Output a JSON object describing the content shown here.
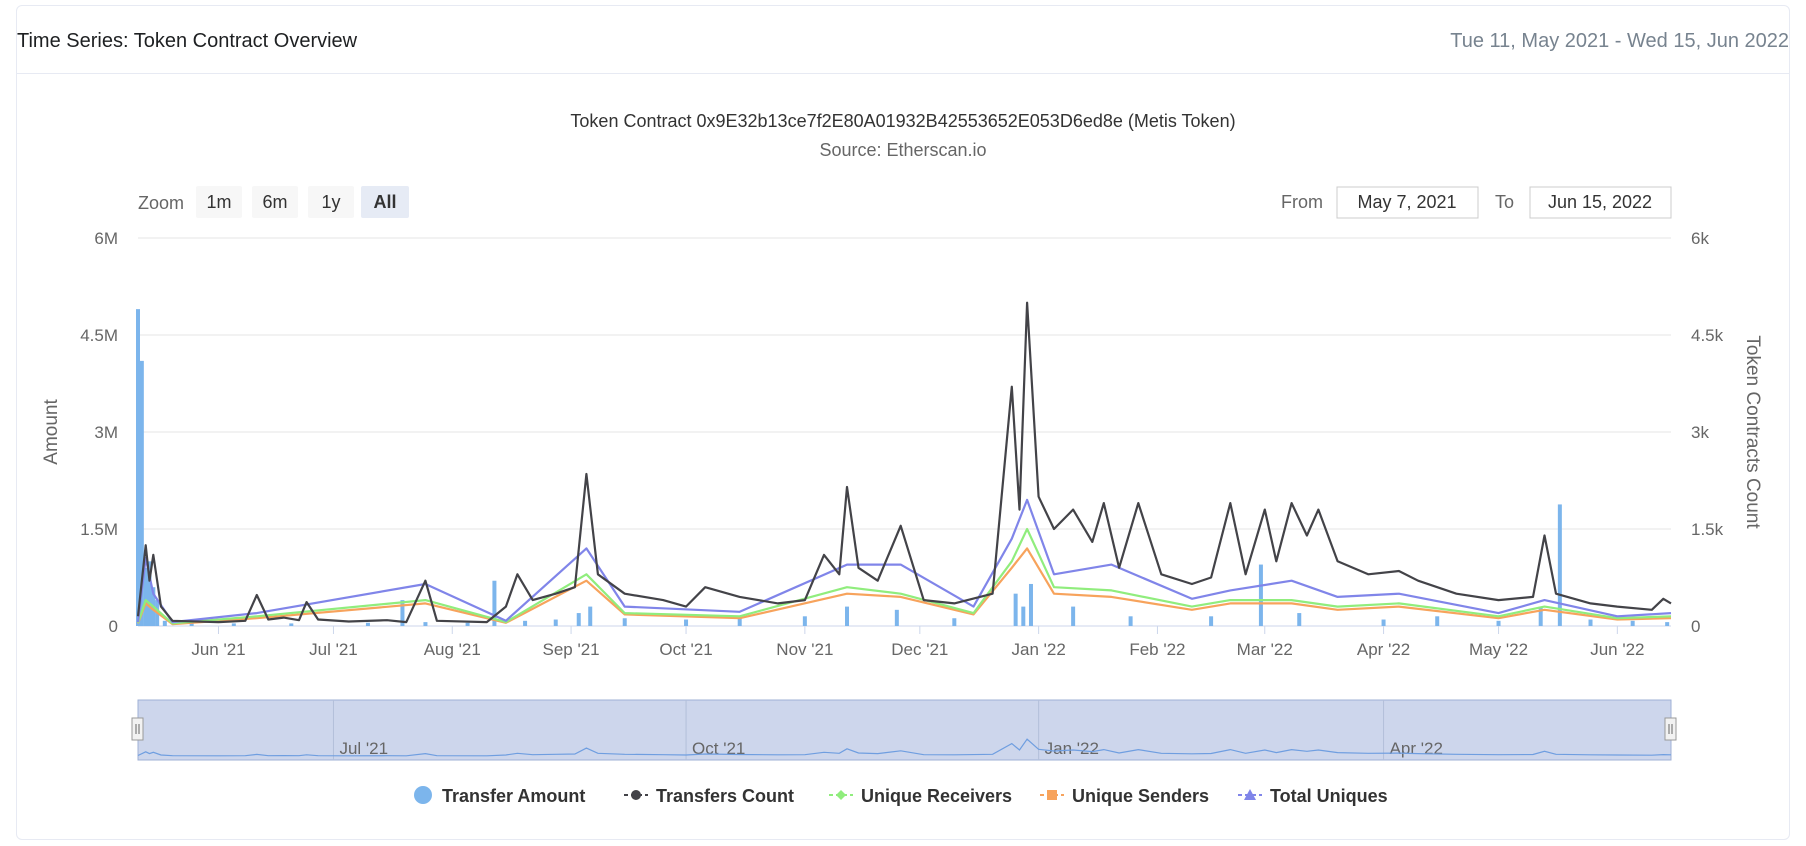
{
  "header": {
    "title": "Time Series: Token Contract Overview",
    "date_range": "Tue 11, May 2021 - Wed 15, Jun 2022"
  },
  "range_selector": {
    "zoom_label": "Zoom",
    "buttons": [
      "1m",
      "6m",
      "1y",
      "All"
    ],
    "active": "All",
    "from_label": "From",
    "from_value": "May 7, 2021",
    "to_label": "To",
    "to_value": "Jun 15, 2022"
  },
  "colors": {
    "transfer_amount": "#7cb5ec",
    "transfers_count": "#434348",
    "unique_receivers": "#90ed7d",
    "unique_senders": "#f7a35c",
    "total_uniques": "#8085e9",
    "grid": "#e6e6e6",
    "navigator_fill": "#cdd6ec"
  },
  "chart_data": {
    "type": "line",
    "title": "Token Contract 0x9E32b13ce7f2E80A01932B42553652E053D6ed8e (Metis Token)",
    "subtitle": "Source: Etherscan.io",
    "y_left": {
      "label": "Amount",
      "ticks": [
        "0",
        "1.5M",
        "3M",
        "4.5M",
        "6M"
      ],
      "tick_values": [
        0,
        1500000,
        3000000,
        4500000,
        6000000
      ],
      "lim": [
        0,
        6000000
      ]
    },
    "y_right": {
      "label": "Token Contracts Count",
      "ticks": [
        "0",
        "1.5k",
        "3k",
        "4.5k",
        "6k"
      ],
      "tick_values": [
        0,
        1500,
        3000,
        4500,
        6000
      ],
      "lim": [
        0,
        6000
      ]
    },
    "x_range": [
      "2021-05-11",
      "2022-06-15"
    ],
    "x_ticks": [
      {
        "label": "Jun '21",
        "date": "2021-06-01"
      },
      {
        "label": "Jul '21",
        "date": "2021-07-01"
      },
      {
        "label": "Aug '21",
        "date": "2021-08-01"
      },
      {
        "label": "Sep '21",
        "date": "2021-09-01"
      },
      {
        "label": "Oct '21",
        "date": "2021-10-01"
      },
      {
        "label": "Nov '21",
        "date": "2021-11-01"
      },
      {
        "label": "Dec '21",
        "date": "2021-12-01"
      },
      {
        "label": "Jan '22",
        "date": "2022-01-01"
      },
      {
        "label": "Feb '22",
        "date": "2022-02-01"
      },
      {
        "label": "Mar '22",
        "date": "2022-03-01"
      },
      {
        "label": "Apr '22",
        "date": "2022-04-01"
      },
      {
        "label": "May '22",
        "date": "2022-05-01"
      },
      {
        "label": "Jun '22",
        "date": "2022-06-01"
      }
    ],
    "navigator_ticks": [
      {
        "label": "Jul '21",
        "date": "2021-07-01"
      },
      {
        "label": "Oct '21",
        "date": "2021-10-01"
      },
      {
        "label": "Jan '22",
        "date": "2022-01-01"
      },
      {
        "label": "Apr '22",
        "date": "2022-04-01"
      }
    ],
    "series": [
      {
        "name": "Transfer Amount",
        "type": "column",
        "axis": "left",
        "points": [
          [
            "2021-05-11",
            4900000
          ],
          [
            "2021-05-12",
            4100000
          ],
          [
            "2021-05-13",
            900000
          ],
          [
            "2021-05-14",
            1000000
          ],
          [
            "2021-05-15",
            600000
          ],
          [
            "2021-05-16",
            400000
          ],
          [
            "2021-05-18",
            80000
          ],
          [
            "2021-05-25",
            50000
          ],
          [
            "2021-06-05",
            40000
          ],
          [
            "2021-06-20",
            40000
          ],
          [
            "2021-07-10",
            50000
          ],
          [
            "2021-07-19",
            400000
          ],
          [
            "2021-07-25",
            60000
          ],
          [
            "2021-08-05",
            50000
          ],
          [
            "2021-08-12",
            700000
          ],
          [
            "2021-08-20",
            80000
          ],
          [
            "2021-08-28",
            100000
          ],
          [
            "2021-09-03",
            200000
          ],
          [
            "2021-09-06",
            300000
          ],
          [
            "2021-09-15",
            120000
          ],
          [
            "2021-10-01",
            100000
          ],
          [
            "2021-10-15",
            120000
          ],
          [
            "2021-11-01",
            150000
          ],
          [
            "2021-11-12",
            300000
          ],
          [
            "2021-11-25",
            250000
          ],
          [
            "2021-12-10",
            120000
          ],
          [
            "2021-12-26",
            500000
          ],
          [
            "2021-12-28",
            300000
          ],
          [
            "2021-12-30",
            650000
          ],
          [
            "2022-01-10",
            300000
          ],
          [
            "2022-01-25",
            150000
          ],
          [
            "2022-02-15",
            150000
          ],
          [
            "2022-02-28",
            950000
          ],
          [
            "2022-03-10",
            200000
          ],
          [
            "2022-04-01",
            100000
          ],
          [
            "2022-04-15",
            150000
          ],
          [
            "2022-05-01",
            80000
          ],
          [
            "2022-05-12",
            300000
          ],
          [
            "2022-05-17",
            1880000
          ],
          [
            "2022-05-25",
            100000
          ],
          [
            "2022-06-05",
            80000
          ],
          [
            "2022-06-14",
            60000
          ]
        ]
      },
      {
        "name": "Transfers Count",
        "type": "line",
        "axis": "right",
        "points": [
          [
            "2021-05-11",
            150
          ],
          [
            "2021-05-13",
            1250
          ],
          [
            "2021-05-14",
            700
          ],
          [
            "2021-05-15",
            1100
          ],
          [
            "2021-05-17",
            300
          ],
          [
            "2021-05-20",
            80
          ],
          [
            "2021-06-01",
            60
          ],
          [
            "2021-06-08",
            80
          ],
          [
            "2021-06-11",
            480
          ],
          [
            "2021-06-14",
            100
          ],
          [
            "2021-06-18",
            130
          ],
          [
            "2021-06-22",
            90
          ],
          [
            "2021-06-24",
            370
          ],
          [
            "2021-06-27",
            100
          ],
          [
            "2021-07-05",
            70
          ],
          [
            "2021-07-15",
            90
          ],
          [
            "2021-07-20",
            60
          ],
          [
            "2021-07-25",
            700
          ],
          [
            "2021-07-28",
            80
          ],
          [
            "2021-08-10",
            60
          ],
          [
            "2021-08-15",
            300
          ],
          [
            "2021-08-18",
            800
          ],
          [
            "2021-08-22",
            400
          ],
          [
            "2021-08-28",
            500
          ],
          [
            "2021-09-02",
            600
          ],
          [
            "2021-09-05",
            2350
          ],
          [
            "2021-09-08",
            800
          ],
          [
            "2021-09-15",
            500
          ],
          [
            "2021-09-25",
            400
          ],
          [
            "2021-10-01",
            300
          ],
          [
            "2021-10-06",
            600
          ],
          [
            "2021-10-15",
            450
          ],
          [
            "2021-10-25",
            350
          ],
          [
            "2021-11-01",
            400
          ],
          [
            "2021-11-06",
            1100
          ],
          [
            "2021-11-10",
            800
          ],
          [
            "2021-11-12",
            2150
          ],
          [
            "2021-11-15",
            900
          ],
          [
            "2021-11-20",
            700
          ],
          [
            "2021-11-26",
            1550
          ],
          [
            "2021-12-02",
            400
          ],
          [
            "2021-12-10",
            350
          ],
          [
            "2021-12-20",
            500
          ],
          [
            "2021-12-25",
            3700
          ],
          [
            "2021-12-27",
            1800
          ],
          [
            "2021-12-29",
            5000
          ],
          [
            "2022-01-01",
            2000
          ],
          [
            "2022-01-05",
            1500
          ],
          [
            "2022-01-10",
            1800
          ],
          [
            "2022-01-15",
            1300
          ],
          [
            "2022-01-18",
            1900
          ],
          [
            "2022-01-22",
            900
          ],
          [
            "2022-01-27",
            1900
          ],
          [
            "2022-02-02",
            800
          ],
          [
            "2022-02-10",
            650
          ],
          [
            "2022-02-15",
            750
          ],
          [
            "2022-02-20",
            1900
          ],
          [
            "2022-02-24",
            800
          ],
          [
            "2022-03-01",
            1800
          ],
          [
            "2022-03-04",
            1000
          ],
          [
            "2022-03-08",
            1900
          ],
          [
            "2022-03-12",
            1400
          ],
          [
            "2022-03-15",
            1800
          ],
          [
            "2022-03-20",
            1000
          ],
          [
            "2022-03-28",
            800
          ],
          [
            "2022-04-05",
            850
          ],
          [
            "2022-04-10",
            700
          ],
          [
            "2022-04-20",
            500
          ],
          [
            "2022-05-01",
            400
          ],
          [
            "2022-05-10",
            450
          ],
          [
            "2022-05-13",
            1400
          ],
          [
            "2022-05-16",
            500
          ],
          [
            "2022-05-25",
            350
          ],
          [
            "2022-06-01",
            300
          ],
          [
            "2022-06-10",
            250
          ],
          [
            "2022-06-13",
            420
          ],
          [
            "2022-06-15",
            350
          ]
        ]
      },
      {
        "name": "Unique Receivers",
        "type": "line",
        "axis": "right",
        "points": [
          [
            "2021-05-11",
            50
          ],
          [
            "2021-05-13",
            400
          ],
          [
            "2021-05-15",
            300
          ],
          [
            "2021-05-20",
            40
          ],
          [
            "2021-06-11",
            150
          ],
          [
            "2021-07-25",
            400
          ],
          [
            "2021-08-15",
            60
          ],
          [
            "2021-09-05",
            800
          ],
          [
            "2021-09-15",
            200
          ],
          [
            "2021-10-15",
            150
          ],
          [
            "2021-11-12",
            600
          ],
          [
            "2021-11-26",
            500
          ],
          [
            "2021-12-15",
            200
          ],
          [
            "2021-12-25",
            1000
          ],
          [
            "2021-12-29",
            1500
          ],
          [
            "2022-01-05",
            600
          ],
          [
            "2022-01-20",
            550
          ],
          [
            "2022-02-10",
            300
          ],
          [
            "2022-02-20",
            400
          ],
          [
            "2022-03-08",
            400
          ],
          [
            "2022-03-20",
            300
          ],
          [
            "2022-04-05",
            350
          ],
          [
            "2022-05-01",
            150
          ],
          [
            "2022-05-13",
            300
          ],
          [
            "2022-06-01",
            120
          ],
          [
            "2022-06-15",
            150
          ]
        ]
      },
      {
        "name": "Unique Senders",
        "type": "line",
        "axis": "right",
        "points": [
          [
            "2021-05-11",
            40
          ],
          [
            "2021-05-13",
            350
          ],
          [
            "2021-05-15",
            250
          ],
          [
            "2021-05-20",
            30
          ],
          [
            "2021-06-11",
            120
          ],
          [
            "2021-07-25",
            350
          ],
          [
            "2021-08-15",
            50
          ],
          [
            "2021-09-05",
            700
          ],
          [
            "2021-09-15",
            180
          ],
          [
            "2021-10-15",
            120
          ],
          [
            "2021-11-12",
            500
          ],
          [
            "2021-11-26",
            450
          ],
          [
            "2021-12-15",
            180
          ],
          [
            "2021-12-25",
            900
          ],
          [
            "2021-12-29",
            1200
          ],
          [
            "2022-01-05",
            500
          ],
          [
            "2022-01-20",
            450
          ],
          [
            "2022-02-10",
            250
          ],
          [
            "2022-02-20",
            350
          ],
          [
            "2022-03-08",
            350
          ],
          [
            "2022-03-20",
            250
          ],
          [
            "2022-04-05",
            300
          ],
          [
            "2022-05-01",
            120
          ],
          [
            "2022-05-13",
            250
          ],
          [
            "2022-06-01",
            100
          ],
          [
            "2022-06-15",
            120
          ]
        ]
      },
      {
        "name": "Total Uniques",
        "type": "line",
        "axis": "right",
        "points": [
          [
            "2021-05-11",
            60
          ],
          [
            "2021-05-13",
            1050
          ],
          [
            "2021-05-15",
            500
          ],
          [
            "2021-05-20",
            60
          ],
          [
            "2021-06-11",
            200
          ],
          [
            "2021-07-25",
            650
          ],
          [
            "2021-08-15",
            80
          ],
          [
            "2021-09-05",
            1200
          ],
          [
            "2021-09-15",
            300
          ],
          [
            "2021-10-15",
            220
          ],
          [
            "2021-11-12",
            950
          ],
          [
            "2021-11-26",
            950
          ],
          [
            "2021-12-15",
            300
          ],
          [
            "2021-12-25",
            1350
          ],
          [
            "2021-12-29",
            1950
          ],
          [
            "2022-01-05",
            800
          ],
          [
            "2022-01-20",
            950
          ],
          [
            "2022-02-10",
            420
          ],
          [
            "2022-02-20",
            550
          ],
          [
            "2022-03-08",
            700
          ],
          [
            "2022-03-20",
            450
          ],
          [
            "2022-04-05",
            500
          ],
          [
            "2022-05-01",
            200
          ],
          [
            "2022-05-13",
            400
          ],
          [
            "2022-06-01",
            150
          ],
          [
            "2022-06-15",
            200
          ]
        ]
      }
    ],
    "legend": [
      "Transfer Amount",
      "Transfers Count",
      "Unique Receivers",
      "Unique Senders",
      "Total Uniques"
    ],
    "legend_position": "bottom-center",
    "grid": true
  }
}
